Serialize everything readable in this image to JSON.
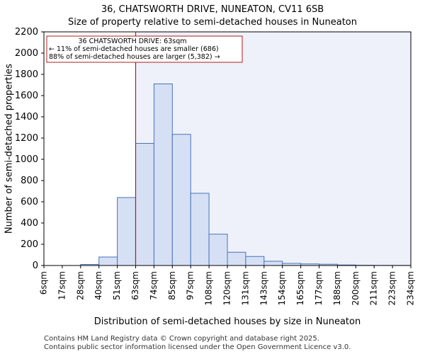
{
  "title_line1": "36, CHATSWORTH DRIVE, NUNEATON, CV11 6SB",
  "title_line2": "Size of property relative to semi-detached houses in Nuneaton",
  "footer_line1": "Contains HM Land Registry data © Crown copyright and database right 2025.",
  "footer_line2": "Contains public sector information licensed under the Open Government Licence v3.0.",
  "colors": {
    "bar_fill": "#d6e0f5",
    "bar_stroke": "#4a72b8",
    "highlight_bg": "#eef1fa",
    "marker_line": "#b01c1c",
    "annotation_border": "#b01c1c"
  },
  "chart_data": {
    "type": "bar",
    "title": "36, CHATSWORTH DRIVE, NUNEATON, CV11 6SB — Size of property relative to semi-detached houses in Nuneaton",
    "xlabel": "Distribution of semi-detached houses by size in Nuneaton",
    "ylabel": "Number of semi-detached properties",
    "ylim": [
      0,
      2200
    ],
    "yticks": [
      0,
      200,
      400,
      600,
      800,
      1000,
      1200,
      1400,
      1600,
      1800,
      2000,
      2200
    ],
    "bin_edges": [
      "6sqm",
      "17sqm",
      "28sqm",
      "40sqm",
      "51sqm",
      "63sqm",
      "74sqm",
      "85sqm",
      "97sqm",
      "108sqm",
      "120sqm",
      "131sqm",
      "143sqm",
      "154sqm",
      "165sqm",
      "177sqm",
      "188sqm",
      "200sqm",
      "211sqm",
      "223sqm",
      "234sqm"
    ],
    "values": [
      0,
      0,
      10,
      80,
      640,
      1150,
      1710,
      1235,
      680,
      295,
      125,
      85,
      40,
      20,
      15,
      12,
      5,
      2,
      1,
      1
    ],
    "marker": {
      "edge_index": 5,
      "label": "36 CHATSWORTH DRIVE: 63sqm"
    },
    "annotation": {
      "line1": "36 CHATSWORTH DRIVE: 63sqm",
      "line2": "← 11% of semi-detached houses are smaller (686)",
      "line3": "88% of semi-detached houses are larger (5,382) →"
    },
    "grid": false
  }
}
